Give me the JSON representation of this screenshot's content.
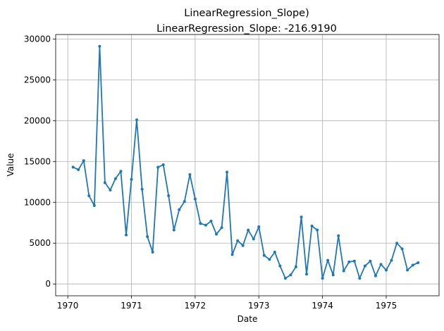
{
  "chart_data": {
    "type": "line",
    "title": "LinearRegression_Slope)",
    "subtitle": "LinearRegression_Slope: -216.9190",
    "xlabel": "Date",
    "ylabel": "Value",
    "xlim": [
      1969.81,
      1975.83
    ],
    "ylim": [
      -1450,
      30550
    ],
    "grid": true,
    "x_ticks": [
      1970,
      1971,
      1972,
      1973,
      1974,
      1975
    ],
    "x_tick_labels": [
      "1970",
      "1971",
      "1972",
      "1973",
      "1974",
      "1975"
    ],
    "y_ticks": [
      0,
      5000,
      10000,
      15000,
      20000,
      25000,
      30000
    ],
    "y_tick_labels": [
      "0",
      "5000",
      "10000",
      "15000",
      "20000",
      "25000",
      "30000"
    ],
    "series_color": "#1f77b4",
    "series": [
      {
        "x": [
          1970.083,
          1970.167,
          1970.25,
          1970.333,
          1970.417,
          1970.5,
          1970.583,
          1970.667,
          1970.75,
          1970.833,
          1970.917,
          1971.0,
          1971.083,
          1971.167,
          1971.25,
          1971.333,
          1971.417,
          1971.5,
          1971.583,
          1971.667,
          1971.75,
          1971.833,
          1971.917,
          1972.0,
          1972.083,
          1972.167,
          1972.25,
          1972.333,
          1972.417,
          1972.5,
          1972.583,
          1972.667,
          1972.75,
          1972.833,
          1972.917,
          1973.0,
          1973.083,
          1973.167,
          1973.25,
          1973.333,
          1973.417,
          1973.5,
          1973.583,
          1973.667,
          1973.75,
          1973.833,
          1973.917,
          1974.0,
          1974.083,
          1974.167,
          1974.25,
          1974.333,
          1974.417,
          1974.5,
          1974.583,
          1974.667,
          1974.75,
          1974.833,
          1974.917,
          1975.0,
          1975.083,
          1975.167,
          1975.25,
          1975.333,
          1975.417,
          1975.5
        ],
        "values": [
          14300,
          14000,
          15100,
          10800,
          9600,
          29100,
          12400,
          11500,
          12900,
          13800,
          6000,
          12800,
          20100,
          11600,
          5800,
          3900,
          14300,
          14600,
          10800,
          6600,
          9100,
          10100,
          13400,
          10400,
          7400,
          7200,
          7700,
          6100,
          6900,
          13700,
          3600,
          5300,
          4700,
          6600,
          5500,
          7000,
          3500,
          3000,
          3900,
          2200,
          700,
          1100,
          2100,
          8200,
          1200,
          7100,
          6600,
          700,
          2900,
          1100,
          5900,
          1600,
          2700,
          2800,
          700,
          2200,
          2800,
          1000,
          2400,
          1700,
          2900,
          5000,
          4300,
          1700,
          2300,
          2600
        ]
      }
    ]
  }
}
